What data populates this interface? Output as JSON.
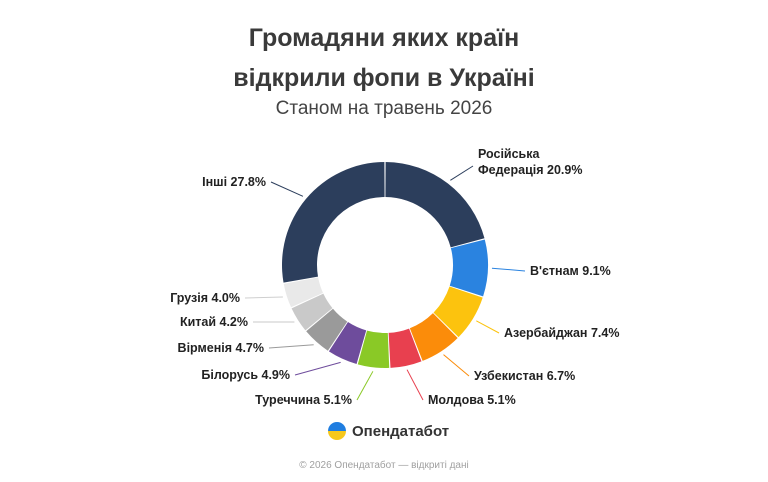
{
  "header": {
    "title_line1": "Громадяни яких країн",
    "title_line2": "відкрили фопи в Україні",
    "subtitle": "Станом на травень 2026"
  },
  "brand": {
    "name": "Опендатабот",
    "logo_icon": "opendatabot-logo-icon"
  },
  "footer": {
    "text": "© 2026 Опендатабот — відкриті дані"
  },
  "chart_data": {
    "type": "pie",
    "donut": true,
    "unit": "%",
    "slices": [
      {
        "label": "Російська Федерація",
        "display": [
          "Російська",
          "Федерація 20.9%"
        ],
        "value": 20.9,
        "color": "#2c3e5c"
      },
      {
        "label": "В'єтнам",
        "display": [
          "В'єтнам 9.1%"
        ],
        "value": 9.1,
        "color": "#2a83e0"
      },
      {
        "label": "Азербайджан",
        "display": [
          "Азербайджан 7.4%"
        ],
        "value": 7.4,
        "color": "#fcc30e"
      },
      {
        "label": "Узбекистан",
        "display": [
          "Узбекистан 6.7%"
        ],
        "value": 6.7,
        "color": "#fb8c0a"
      },
      {
        "label": "Молдова",
        "display": [
          "Молдова 5.1%"
        ],
        "value": 5.1,
        "color": "#e8404f"
      },
      {
        "label": "Туреччина",
        "display": [
          "Туреччина 5.1%"
        ],
        "value": 5.1,
        "color": "#8ac926"
      },
      {
        "label": "Білорусь",
        "display": [
          "Білорусь 4.9%"
        ],
        "value": 4.9,
        "color": "#6e4c9c"
      },
      {
        "label": "Вірменія",
        "display": [
          "Вірменія 4.7%"
        ],
        "value": 4.7,
        "color": "#9a9a9a"
      },
      {
        "label": "Китай",
        "display": [
          "Китай 4.2%"
        ],
        "value": 4.2,
        "color": "#c9c9c9"
      },
      {
        "label": "Грузія",
        "display": [
          "Грузія 4.0%"
        ],
        "value": 4.0,
        "color": "#e9e9e9"
      },
      {
        "label": "Інші",
        "display": [
          "Інші 27.8%"
        ],
        "value": 27.8,
        "color": "#2c3e5c"
      }
    ]
  }
}
